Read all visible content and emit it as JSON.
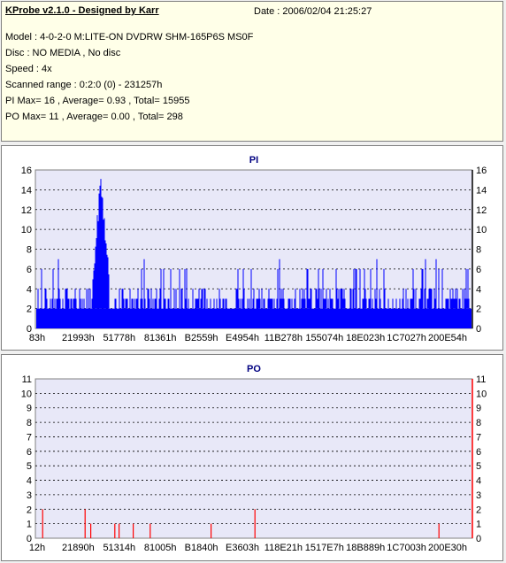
{
  "header": {
    "title": "KProbe v2.1.0 - Designed by Karr",
    "date": "Date : 2006/02/04 21:25:27",
    "lines": [
      "Model : 4-0-2-0 M:LITE-ON DVDRW SHM-165P6S MS0F",
      "Disc : NO MEDIA , No disc",
      "Speed : 4x",
      "Scanned range : 0:2:0 (0) - 231257h",
      "PI Max= 16 , Average= 0.93 , Total= 15955",
      "PO Max= 11 , Average= 0.00 , Total= 298"
    ]
  },
  "colors": {
    "pi": "#0000ff",
    "po": "#ff0000",
    "plot_bg": "#e8e8f8",
    "grid": "#000000",
    "title": "#000080"
  },
  "chart_data": [
    {
      "type": "bar",
      "title": "PI",
      "xlabel": "",
      "ylabel": "",
      "ylim": [
        0,
        16
      ],
      "yticks": [
        0,
        2,
        4,
        6,
        8,
        10,
        12,
        14,
        16
      ],
      "xticks": [
        "83h",
        "21993h",
        "51778h",
        "81361h",
        "B2559h",
        "E4954h",
        "11B278h",
        "155074h",
        "18E023h",
        "1C7027h",
        "200E54h"
      ],
      "series": [
        {
          "color": "#0000ff",
          "baseline": 2,
          "max": 16,
          "average": 0.93,
          "total": 15955
        }
      ],
      "grid": true,
      "peak": {
        "x": "about 57000h",
        "y": 16
      }
    },
    {
      "type": "bar",
      "title": "PO",
      "xlabel": "",
      "ylabel": "",
      "ylim": [
        0,
        11
      ],
      "yticks": [
        0,
        1,
        2,
        3,
        4,
        5,
        6,
        7,
        8,
        9,
        10,
        11
      ],
      "xticks": [
        "12h",
        "21890h",
        "51314h",
        "81005h",
        "B1840h",
        "E3603h",
        "118E21h",
        "1517E7h",
        "18B889h",
        "1C7003h",
        "200E30h"
      ],
      "series": [
        {
          "color": "#ff0000",
          "max": 11,
          "average": 0.0,
          "total": 298
        }
      ],
      "grid": true,
      "spikes": [
        {
          "x": "about 2000h",
          "y": 2
        },
        {
          "x": "about 32000h",
          "y": 2
        },
        {
          "x": "about 36000h",
          "y": 1
        },
        {
          "x": "about 53000h",
          "y": 1
        },
        {
          "x": "about 56000h",
          "y": 1
        },
        {
          "x": "about 66000h",
          "y": 1
        },
        {
          "x": "about 78000h",
          "y": 1
        },
        {
          "x": "about 121000h",
          "y": 1
        },
        {
          "x": "about 152000h",
          "y": 2
        },
        {
          "x": "about 282000h",
          "y": 1
        }
      ]
    }
  ]
}
